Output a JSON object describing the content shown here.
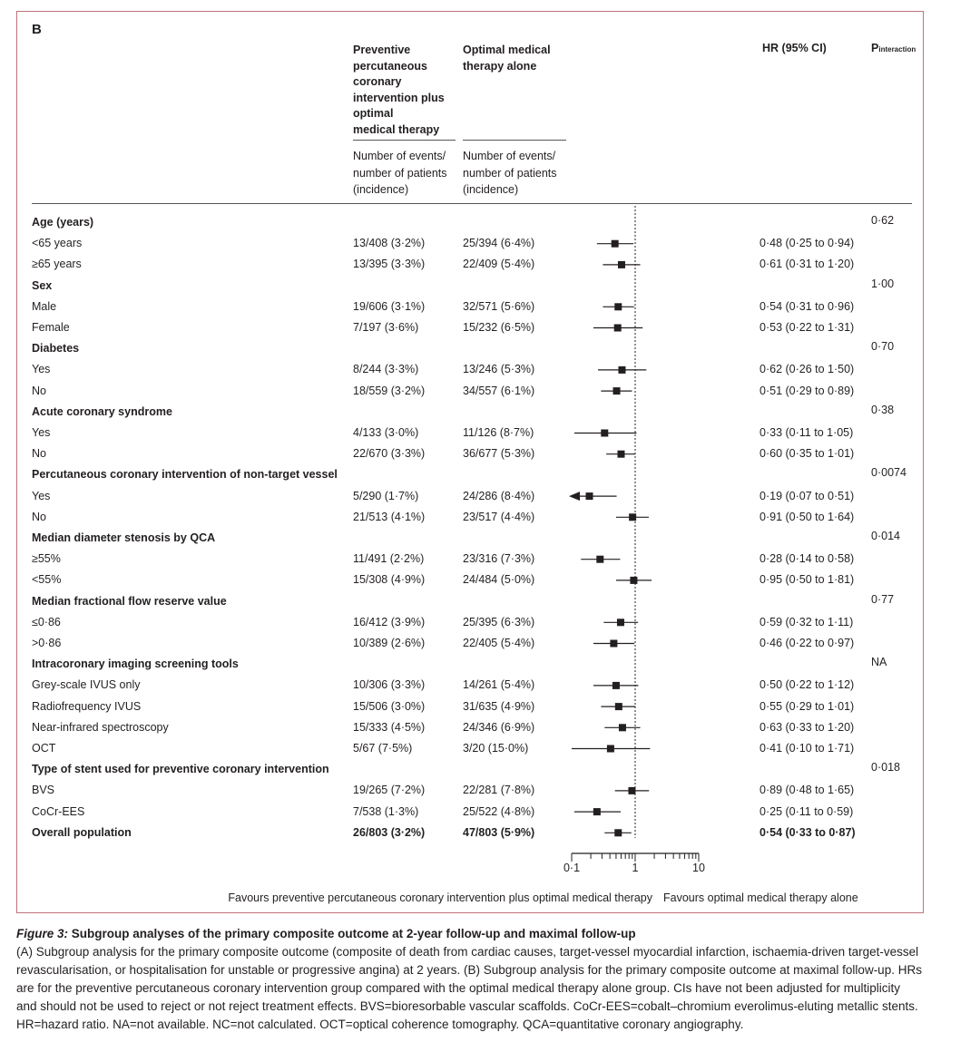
{
  "panel_label": "B",
  "columns": {
    "pci_header": [
      "Preventive",
      "percutaneous",
      "coronary",
      "intervention plus",
      "optimal",
      "medical therapy"
    ],
    "omt_header": [
      "Optimal medical",
      "therapy alone"
    ],
    "events_header": [
      "Number of events/",
      "number of patients",
      "(incidence)"
    ],
    "hr_header": "HR (95% CI)",
    "p_header_main": "P",
    "p_header_sub": "interaction"
  },
  "chart_data": {
    "type": "forest",
    "x_scale": "log",
    "xlim": [
      0.1,
      10
    ],
    "reference_line": 1,
    "axis_labels": [
      "0·1",
      "1",
      "10"
    ],
    "left_arrow_label": "Favours preventive percutaneous coronary intervention plus optimal medical therapy",
    "right_arrow_label": "Favours optimal medical therapy alone",
    "rows": [
      {
        "type": "header",
        "label": "Age (years)",
        "p": "0·62"
      },
      {
        "type": "item",
        "label": "<65 years",
        "pci": "13/408 (3·2%)",
        "omt": "25/394 (6·4%)",
        "hr_text": "0·48 (0·25 to 0·94)",
        "hr": 0.48,
        "lo": 0.25,
        "hi": 0.94
      },
      {
        "type": "item",
        "label": "≥65 years",
        "pci": "13/395 (3·3%)",
        "omt": "22/409 (5·4%)",
        "hr_text": "0·61 (0·31 to 1·20)",
        "hr": 0.61,
        "lo": 0.31,
        "hi": 1.2
      },
      {
        "type": "header",
        "label": "Sex",
        "p": "1·00"
      },
      {
        "type": "item",
        "label": "Male",
        "pci": "19/606 (3·1%)",
        "omt": "32/571 (5·6%)",
        "hr_text": "0·54 (0·31 to 0·96)",
        "hr": 0.54,
        "lo": 0.31,
        "hi": 0.96
      },
      {
        "type": "item",
        "label": "Female",
        "pci": "7/197 (3·6%)",
        "omt": "15/232 (6·5%)",
        "hr_text": "0·53 (0·22 to 1·31)",
        "hr": 0.53,
        "lo": 0.22,
        "hi": 1.31
      },
      {
        "type": "header",
        "label": "Diabetes",
        "p": "0·70"
      },
      {
        "type": "item",
        "label": "Yes",
        "pci": "8/244 (3·3%)",
        "omt": "13/246 (5·3%)",
        "hr_text": "0·62 (0·26 to 1·50)",
        "hr": 0.62,
        "lo": 0.26,
        "hi": 1.5
      },
      {
        "type": "item",
        "label": "No",
        "pci": "18/559 (3·2%)",
        "omt": "34/557 (6·1%)",
        "hr_text": "0·51 (0·29 to 0·89)",
        "hr": 0.51,
        "lo": 0.29,
        "hi": 0.89
      },
      {
        "type": "header",
        "label": "Acute coronary syndrome",
        "p": "0·38"
      },
      {
        "type": "item",
        "label": "Yes",
        "pci": "4/133 (3·0%)",
        "omt": "11/126 (8·7%)",
        "hr_text": "0·33 (0·11 to 1·05)",
        "hr": 0.33,
        "lo": 0.11,
        "hi": 1.05
      },
      {
        "type": "item",
        "label": "No",
        "pci": "22/670 (3·3%)",
        "omt": "36/677 (5·3%)",
        "hr_text": "0·60 (0·35 to 1·01)",
        "hr": 0.6,
        "lo": 0.35,
        "hi": 1.01
      },
      {
        "type": "header",
        "label": "Percutaneous coronary intervention of non-target vessel",
        "p": "0·0074"
      },
      {
        "type": "item",
        "label": "Yes",
        "pci": "5/290 (1·7%)",
        "omt": "24/286 (8·4%)",
        "hr_text": "0·19 (0·07 to 0·51)",
        "hr": 0.19,
        "lo": 0.07,
        "hi": 0.51
      },
      {
        "type": "item",
        "label": "No",
        "pci": "21/513 (4·1%)",
        "omt": "23/517 (4·4%)",
        "hr_text": "0·91 (0·50 to 1·64)",
        "hr": 0.91,
        "lo": 0.5,
        "hi": 1.64
      },
      {
        "type": "header",
        "label": "Median diameter stenosis by QCA",
        "p": "0·014"
      },
      {
        "type": "item",
        "label": "≥55%",
        "pci": "11/491 (2·2%)",
        "omt": "23/316 (7·3%)",
        "hr_text": "0·28 (0·14 to 0·58)",
        "hr": 0.28,
        "lo": 0.14,
        "hi": 0.58
      },
      {
        "type": "item",
        "label": "<55%",
        "pci": "15/308 (4·9%)",
        "omt": "24/484 (5·0%)",
        "hr_text": "0·95 (0·50 to 1·81)",
        "hr": 0.95,
        "lo": 0.5,
        "hi": 1.81
      },
      {
        "type": "header",
        "label": "Median fractional flow reserve value",
        "p": "0·77"
      },
      {
        "type": "item",
        "label": "≤0·86",
        "pci": "16/412 (3·9%)",
        "omt": "25/395 (6·3%)",
        "hr_text": "0·59 (0·32 to 1·11)",
        "hr": 0.59,
        "lo": 0.32,
        "hi": 1.11
      },
      {
        "type": "item",
        "label": ">0·86",
        "pci": "10/389 (2·6%)",
        "omt": "22/405 (5·4%)",
        "hr_text": "0·46 (0·22 to 0·97)",
        "hr": 0.46,
        "lo": 0.22,
        "hi": 0.97
      },
      {
        "type": "header",
        "label": "Intracoronary imaging screening tools",
        "p": "NA"
      },
      {
        "type": "item",
        "label": "Grey-scale IVUS only",
        "pci": "10/306 (3·3%)",
        "omt": "14/261 (5·4%)",
        "hr_text": "0·50 (0·22 to 1·12)",
        "hr": 0.5,
        "lo": 0.22,
        "hi": 1.12
      },
      {
        "type": "item",
        "label": "Radiofrequency IVUS",
        "pci": "15/506 (3·0%)",
        "omt": "31/635 (4·9%)",
        "hr_text": "0·55 (0·29 to 1·01)",
        "hr": 0.55,
        "lo": 0.29,
        "hi": 1.01
      },
      {
        "type": "item",
        "label": "Near-infrared spectroscopy",
        "pci": "15/333 (4·5%)",
        "omt": "24/346 (6·9%)",
        "hr_text": "0·63 (0·33 to 1·20)",
        "hr": 0.63,
        "lo": 0.33,
        "hi": 1.2
      },
      {
        "type": "item",
        "label": "OCT",
        "pci": "5/67 (7·5%)",
        "omt": "3/20 (15·0%)",
        "hr_text": "0·41 (0·10 to 1·71)",
        "hr": 0.41,
        "lo": 0.1,
        "hi": 1.71
      },
      {
        "type": "header",
        "label": "Type of stent used for preventive coronary intervention",
        "p": "0·018"
      },
      {
        "type": "item",
        "label": "BVS",
        "pci": "19/265 (7·2%)",
        "omt": "22/281 (7·8%)",
        "hr_text": "0·89 (0·48 to 1·65)",
        "hr": 0.89,
        "lo": 0.48,
        "hi": 1.65
      },
      {
        "type": "item",
        "label": "CoCr-EES",
        "pci": "7/538 (1·3%)",
        "omt": "25/522 (4·8%)",
        "hr_text": "0·25 (0·11 to 0·59)",
        "hr": 0.25,
        "lo": 0.11,
        "hi": 0.59
      },
      {
        "type": "overall",
        "label": "Overall population",
        "pci": "26/803 (3·2%)",
        "omt": "47/803 (5·9%)",
        "hr_text": "0·54 (0·33 to 0·87)",
        "hr": 0.54,
        "lo": 0.33,
        "hi": 0.87
      }
    ]
  },
  "caption": {
    "fig_label": "Figure 3:",
    "title": " Subgroup analyses of the primary composite outcome at 2-year follow-up and maximal follow-up",
    "body": "(A) Subgroup analysis for the primary composite outcome (composite of death from cardiac causes, target-vessel myocardial infarction, ischaemia-driven target-vessel revascularisation, or hospitalisation for unstable or progressive angina) at 2 years. (B) Subgroup analysis for the primary composite outcome at maximal follow-up. HRs are for the preventive percutaneous coronary intervention group compared with the optimal medical therapy alone group. CIs have not been adjusted for multiplicity and should not be used to reject or not reject treatment effects. BVS=bioresorbable vascular scaffolds. CoCr-EES=cobalt–chromium everolimus-eluting metallic stents. HR=hazard ratio. NA=not available. NC=not calculated. OCT=optical coherence tomography. QCA=quantitative coronary angiography."
  },
  "colors": {
    "frame": "#c0727a",
    "ink": "#231f20"
  }
}
